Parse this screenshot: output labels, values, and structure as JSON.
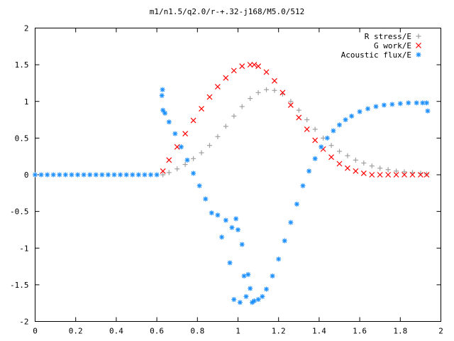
{
  "chart_data": {
    "type": "scatter",
    "title": "m1/n1.5/q2.0/r-+.32-j168/M5.0/512",
    "xlabel": "",
    "ylabel": "",
    "xlim": [
      0,
      2
    ],
    "ylim": [
      -2,
      2
    ],
    "x_ticks": [
      "0",
      "0.2",
      "0.4",
      "0.6",
      "0.8",
      "1",
      "1.2",
      "1.4",
      "1.6",
      "1.8",
      "2"
    ],
    "y_ticks": [
      "2",
      "1.5",
      "1",
      "0.5",
      "0",
      "-0.5",
      "-1",
      "-1.5",
      "-2"
    ],
    "grid": false,
    "legend_position": "top-right",
    "series": [
      {
        "name": "R stress/E",
        "marker": "plus",
        "color": "#a0a0a0",
        "x": [
          0.63,
          0.66,
          0.7,
          0.74,
          0.78,
          0.82,
          0.86,
          0.9,
          0.94,
          0.98,
          1.02,
          1.06,
          1.1,
          1.14,
          1.18,
          1.22,
          1.26,
          1.3,
          1.34,
          1.38,
          1.42,
          1.46,
          1.5,
          1.54,
          1.58,
          1.62,
          1.66,
          1.7,
          1.74,
          1.78,
          1.82,
          1.86,
          1.9,
          1.93
        ],
        "y": [
          0.0,
          0.03,
          0.08,
          0.14,
          0.22,
          0.3,
          0.4,
          0.52,
          0.66,
          0.8,
          0.93,
          1.04,
          1.12,
          1.16,
          1.15,
          1.1,
          1.0,
          0.88,
          0.75,
          0.62,
          0.5,
          0.4,
          0.32,
          0.26,
          0.2,
          0.16,
          0.12,
          0.09,
          0.07,
          0.05,
          0.04,
          0.03,
          0.02,
          0.01
        ]
      },
      {
        "name": "G work/E",
        "marker": "cross",
        "color": "#ff0000",
        "x": [
          0.63,
          0.66,
          0.7,
          0.74,
          0.78,
          0.82,
          0.86,
          0.9,
          0.94,
          0.98,
          1.02,
          1.06,
          1.08,
          1.1,
          1.14,
          1.18,
          1.22,
          1.26,
          1.3,
          1.34,
          1.38,
          1.42,
          1.46,
          1.5,
          1.54,
          1.58,
          1.62,
          1.66,
          1.7,
          1.74,
          1.78,
          1.82,
          1.86,
          1.9,
          1.93
        ],
        "y": [
          0.05,
          0.2,
          0.38,
          0.56,
          0.74,
          0.9,
          1.06,
          1.2,
          1.32,
          1.42,
          1.48,
          1.5,
          1.5,
          1.48,
          1.4,
          1.28,
          1.12,
          0.95,
          0.78,
          0.62,
          0.47,
          0.35,
          0.24,
          0.15,
          0.09,
          0.05,
          0.02,
          0.0,
          0.0,
          0.0,
          0.0,
          0.0,
          0.0,
          0.0,
          0.0
        ]
      },
      {
        "name": "Acoustic flux/E",
        "marker": "star",
        "color": "#1e90ff",
        "x": [
          0.0,
          0.03,
          0.06,
          0.09,
          0.12,
          0.15,
          0.18,
          0.21,
          0.24,
          0.27,
          0.3,
          0.33,
          0.36,
          0.39,
          0.42,
          0.45,
          0.48,
          0.51,
          0.54,
          0.57,
          0.6,
          0.625,
          0.628,
          0.63,
          0.64,
          0.66,
          0.69,
          0.72,
          0.75,
          0.78,
          0.81,
          0.84,
          0.87,
          0.9,
          0.92,
          0.94,
          0.96,
          0.97,
          0.98,
          0.99,
          1.0,
          1.01,
          1.02,
          1.03,
          1.04,
          1.05,
          1.06,
          1.07,
          1.08,
          1.1,
          1.12,
          1.14,
          1.17,
          1.2,
          1.23,
          1.26,
          1.29,
          1.32,
          1.35,
          1.38,
          1.41,
          1.44,
          1.47,
          1.5,
          1.53,
          1.56,
          1.6,
          1.64,
          1.68,
          1.72,
          1.76,
          1.8,
          1.84,
          1.88,
          1.91,
          1.93,
          1.935
        ],
        "y": [
          0,
          0,
          0,
          0,
          0,
          0,
          0,
          0,
          0,
          0,
          0,
          0,
          0,
          0,
          0,
          0,
          0,
          0,
          0,
          0,
          0,
          1.08,
          1.16,
          0.88,
          0.84,
          0.72,
          0.56,
          0.38,
          0.2,
          0.02,
          -0.15,
          -0.33,
          -0.52,
          -0.55,
          -0.85,
          -0.62,
          -1.2,
          -0.72,
          -1.7,
          -0.6,
          -0.75,
          -1.74,
          -0.95,
          -1.38,
          -1.66,
          -1.36,
          -1.55,
          -1.74,
          -1.72,
          -1.7,
          -1.66,
          -1.56,
          -1.38,
          -1.15,
          -0.9,
          -0.65,
          -0.4,
          -0.15,
          0.05,
          0.22,
          0.38,
          0.5,
          0.6,
          0.68,
          0.75,
          0.8,
          0.86,
          0.9,
          0.93,
          0.95,
          0.96,
          0.97,
          0.98,
          0.98,
          0.98,
          0.98,
          0.87
        ]
      }
    ]
  }
}
